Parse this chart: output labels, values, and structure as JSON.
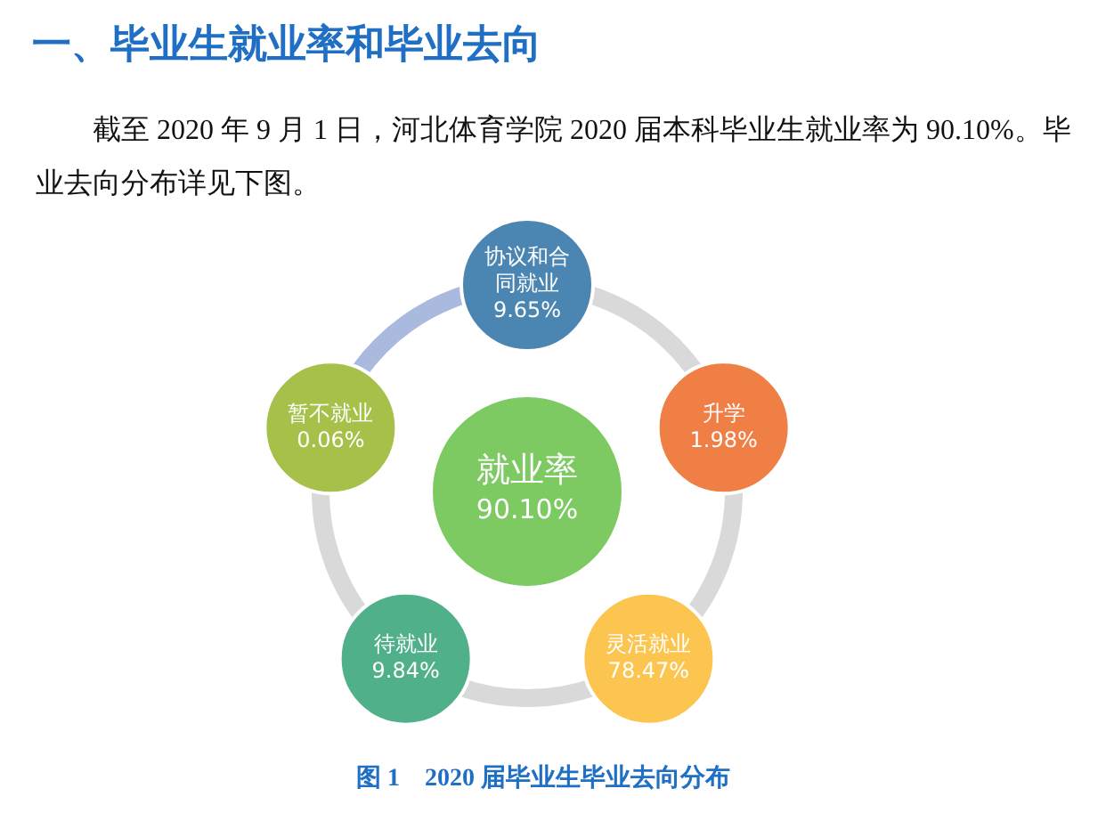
{
  "chart_data": {
    "type": "other",
    "title": "一、毕业生就业率和毕业去向",
    "subtitle": "截至 2020 年 9 月 1 日，河北体育学院 2020 届本科毕业生就业率为 90.10%。毕业去向分布详见下图。",
    "categories": [
      "协议和合同就业",
      "升学",
      "灵活就业",
      "待就业",
      "暂不就业"
    ],
    "values": [
      9.65,
      1.98,
      78.47,
      9.84,
      0.06
    ],
    "value_labels": [
      "9.65%",
      "1.98%",
      "78.47%",
      "9.84%",
      "0.06%"
    ],
    "colors": [
      "#4a86b1",
      "#ef7f45",
      "#fcc54f",
      "#4fb08a",
      "#a7c04a"
    ],
    "annotations": [
      "就业率\n90.10%",
      "图 1　2020 届毕业生毕业去向分布"
    ]
  }
}
